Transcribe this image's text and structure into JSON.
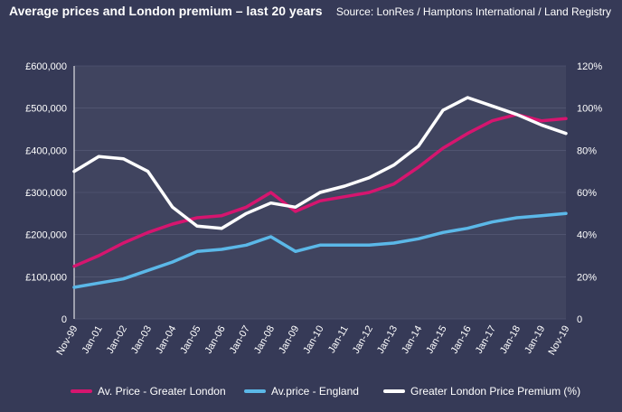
{
  "header": {
    "title": "Average prices and London premium – last 20 years",
    "source": "Source: LonRes / Hamptons International / Land Registry"
  },
  "colors": {
    "london": "#d6156f",
    "england": "#5bb8e8",
    "premium": "#ffffff",
    "plot_bg": "#40445f",
    "page_bg": "#363a57"
  },
  "legend": {
    "london": "Av. Price - Greater London",
    "england": "Av.price - England",
    "premium": "Greater London Price Premium (%)"
  },
  "chart_data": {
    "type": "line",
    "title": "Average prices and London premium – last 20 years",
    "x_labels": [
      "Nov-99",
      "Jan-01",
      "Jan-02",
      "Jan-03",
      "Jan-04",
      "Jan-05",
      "Jan-06",
      "Jan-07",
      "Jan-08",
      "Jan-09",
      "Jan-10",
      "Jan-11",
      "Jan-12",
      "Jan-13",
      "Jan-14",
      "Jan-15",
      "Jan-16",
      "Jan-17",
      "Jan-18",
      "Jan-19",
      "Nov-19"
    ],
    "y_left": {
      "min": 0,
      "max": 600000,
      "ticks": [
        "0",
        "£100,000",
        "£200,000",
        "£300,000",
        "£400,000",
        "£500,000",
        "£600,000"
      ]
    },
    "y_right": {
      "min": 0,
      "max": 120,
      "ticks": [
        "0",
        "20%",
        "40%",
        "60%",
        "80%",
        "100%",
        "120%"
      ]
    },
    "series": [
      {
        "name": "Av. Price - Greater London",
        "axis": "left",
        "values": [
          125000,
          150000,
          180000,
          205000,
          225000,
          240000,
          245000,
          265000,
          300000,
          255000,
          280000,
          290000,
          300000,
          320000,
          360000,
          405000,
          440000,
          470000,
          485000,
          470000,
          475000
        ]
      },
      {
        "name": "Av.price - England",
        "axis": "left",
        "values": [
          75000,
          85000,
          95000,
          115000,
          135000,
          160000,
          165000,
          175000,
          195000,
          160000,
          175000,
          175000,
          175000,
          180000,
          190000,
          205000,
          215000,
          230000,
          240000,
          245000,
          250000
        ]
      },
      {
        "name": "Greater London Price Premium (%)",
        "axis": "right",
        "values": [
          70,
          77,
          76,
          70,
          53,
          44,
          43,
          50,
          55,
          53,
          60,
          63,
          67,
          73,
          82,
          99,
          105,
          101,
          97,
          92,
          88
        ]
      }
    ]
  }
}
